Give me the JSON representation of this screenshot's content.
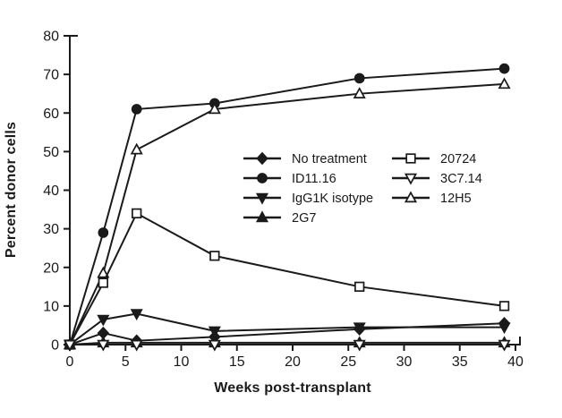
{
  "chart": {
    "background": "#ffffff",
    "ink_color": "#1a1a1a"
  },
  "chart_data": {
    "type": "line",
    "title": "",
    "xlabel": "Weeks post-transplant",
    "ylabel": "Percent donor cells",
    "xlim": [
      0,
      40
    ],
    "ylim": [
      0,
      80
    ],
    "x_ticks": [
      0,
      5,
      10,
      15,
      20,
      25,
      30,
      35,
      40
    ],
    "y_ticks": [
      0,
      10,
      20,
      30,
      40,
      50,
      60,
      70,
      80
    ],
    "grid": false,
    "legend_position": "inside-center-right",
    "x": [
      0,
      3,
      6,
      13,
      26,
      39
    ],
    "series": [
      {
        "name": "No treatment",
        "marker": "diamond",
        "fill": "filled",
        "values": [
          0,
          3,
          1,
          2,
          4,
          5.5
        ]
      },
      {
        "name": "ID11.16",
        "marker": "circle",
        "fill": "filled",
        "values": [
          0,
          29,
          61,
          62.5,
          69,
          71.5
        ]
      },
      {
        "name": "IgG1K isotype",
        "marker": "triangle-down",
        "fill": "filled",
        "values": [
          0,
          6.5,
          8,
          3.5,
          4.5,
          4.5
        ]
      },
      {
        "name": "2G7",
        "marker": "triangle-up",
        "fill": "filled",
        "values": [
          0,
          0.5,
          0.5,
          0.5,
          0.5,
          0.5
        ]
      },
      {
        "name": "20724",
        "marker": "square",
        "fill": "open",
        "values": [
          0,
          16,
          34,
          23,
          15,
          10
        ]
      },
      {
        "name": "3C7.14",
        "marker": "triangle-down",
        "fill": "open",
        "values": [
          0,
          0,
          0,
          0,
          0,
          0
        ]
      },
      {
        "name": "12H5",
        "marker": "triangle-up",
        "fill": "open",
        "values": [
          0,
          18.5,
          50.5,
          61,
          65,
          67.5
        ]
      }
    ],
    "legend_columns": [
      [
        0,
        1,
        2,
        3
      ],
      [
        4,
        5,
        6
      ]
    ]
  }
}
